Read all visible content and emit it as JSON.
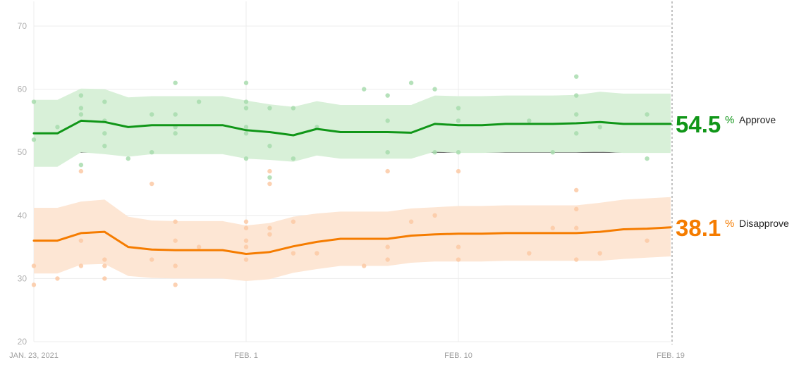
{
  "chart_data": {
    "type": "line",
    "ylim": [
      20,
      70
    ],
    "y_ticks": [
      20,
      30,
      40,
      50,
      60,
      70
    ],
    "x_tick_labels": [
      {
        "date": "2021-01-23",
        "label": "JAN. 23, 2021"
      },
      {
        "date": "2021-02-01",
        "label": "FEB. 1"
      },
      {
        "date": "2021-02-10",
        "label": "FEB. 10"
      },
      {
        "date": "2021-02-19",
        "label": "FEB. 19"
      }
    ],
    "x_range": [
      "2021-01-23",
      "2021-02-19"
    ],
    "reference_line": 50,
    "grid": true,
    "series": [
      {
        "name": "Approve",
        "color": "#109618",
        "band_color": "#d8f0d8",
        "dot_color": "#a8dcae",
        "final_value": "54.5",
        "line": [
          [
            "2021-01-23",
            53.0
          ],
          [
            "2021-01-24",
            53.0
          ],
          [
            "2021-01-25",
            55.0
          ],
          [
            "2021-01-26",
            54.8
          ],
          [
            "2021-01-27",
            54.0
          ],
          [
            "2021-01-28",
            54.3
          ],
          [
            "2021-01-29",
            54.3
          ],
          [
            "2021-01-30",
            54.3
          ],
          [
            "2021-01-31",
            54.3
          ],
          [
            "2021-02-01",
            53.5
          ],
          [
            "2021-02-02",
            53.2
          ],
          [
            "2021-02-03",
            52.7
          ],
          [
            "2021-02-04",
            53.7
          ],
          [
            "2021-02-05",
            53.2
          ],
          [
            "2021-02-06",
            53.2
          ],
          [
            "2021-02-07",
            53.2
          ],
          [
            "2021-02-08",
            53.1
          ],
          [
            "2021-02-09",
            54.5
          ],
          [
            "2021-02-10",
            54.3
          ],
          [
            "2021-02-11",
            54.3
          ],
          [
            "2021-02-12",
            54.5
          ],
          [
            "2021-02-13",
            54.5
          ],
          [
            "2021-02-14",
            54.5
          ],
          [
            "2021-02-15",
            54.6
          ],
          [
            "2021-02-16",
            54.8
          ],
          [
            "2021-02-17",
            54.5
          ],
          [
            "2021-02-18",
            54.5
          ],
          [
            "2021-02-19",
            54.5
          ]
        ],
        "band_upper": [
          58.3,
          58.3,
          60.1,
          60.0,
          58.7,
          58.9,
          58.9,
          58.9,
          58.9,
          58.2,
          57.6,
          57.2,
          58.1,
          57.5,
          57.5,
          57.5,
          57.5,
          59.0,
          58.9,
          58.9,
          59.0,
          59.0,
          59.0,
          59.1,
          59.6,
          59.3,
          59.3,
          59.3
        ],
        "band_lower": [
          47.7,
          47.7,
          50.0,
          49.7,
          49.3,
          49.7,
          49.7,
          49.7,
          49.7,
          49.0,
          48.8,
          48.5,
          49.5,
          49.0,
          49.0,
          49.0,
          49.0,
          50.1,
          49.9,
          49.9,
          50.0,
          50.0,
          50.0,
          50.0,
          50.1,
          49.9,
          49.9,
          49.9
        ],
        "polls": [
          [
            "2021-01-23",
            58
          ],
          [
            "2021-01-23",
            52
          ],
          [
            "2021-01-24",
            54
          ],
          [
            "2021-01-25",
            59
          ],
          [
            "2021-01-25",
            57
          ],
          [
            "2021-01-25",
            56
          ],
          [
            "2021-01-25",
            48
          ],
          [
            "2021-01-26",
            58
          ],
          [
            "2021-01-26",
            55
          ],
          [
            "2021-01-26",
            53
          ],
          [
            "2021-01-26",
            51
          ],
          [
            "2021-01-27",
            49
          ],
          [
            "2021-01-28",
            56
          ],
          [
            "2021-01-28",
            50
          ],
          [
            "2021-01-29",
            61
          ],
          [
            "2021-01-29",
            56
          ],
          [
            "2021-01-29",
            54
          ],
          [
            "2021-01-29",
            53
          ],
          [
            "2021-01-30",
            58
          ],
          [
            "2021-02-01",
            61
          ],
          [
            "2021-02-01",
            58
          ],
          [
            "2021-02-01",
            57
          ],
          [
            "2021-02-01",
            54
          ],
          [
            "2021-02-01",
            53
          ],
          [
            "2021-02-01",
            49
          ],
          [
            "2021-02-02",
            57
          ],
          [
            "2021-02-02",
            51
          ],
          [
            "2021-02-02",
            46
          ],
          [
            "2021-02-03",
            57
          ],
          [
            "2021-02-03",
            49
          ],
          [
            "2021-02-04",
            54
          ],
          [
            "2021-02-06",
            60
          ],
          [
            "2021-02-07",
            59
          ],
          [
            "2021-02-07",
            55
          ],
          [
            "2021-02-07",
            50
          ],
          [
            "2021-02-08",
            61
          ],
          [
            "2021-02-09",
            60
          ],
          [
            "2021-02-09",
            50
          ],
          [
            "2021-02-10",
            57
          ],
          [
            "2021-02-10",
            55
          ],
          [
            "2021-02-10",
            50
          ],
          [
            "2021-02-13",
            55
          ],
          [
            "2021-02-14",
            50
          ],
          [
            "2021-02-15",
            62
          ],
          [
            "2021-02-15",
            59
          ],
          [
            "2021-02-15",
            56
          ],
          [
            "2021-02-15",
            53
          ],
          [
            "2021-02-16",
            54
          ],
          [
            "2021-02-18",
            56
          ],
          [
            "2021-02-18",
            49
          ]
        ]
      },
      {
        "name": "Disapprove",
        "color": "#f57c00",
        "band_color": "#fde6d4",
        "dot_color": "#fcc9a5",
        "final_value": "38.1",
        "line": [
          [
            "2021-01-23",
            36.0
          ],
          [
            "2021-01-24",
            36.0
          ],
          [
            "2021-01-25",
            37.2
          ],
          [
            "2021-01-26",
            37.4
          ],
          [
            "2021-01-27",
            35.0
          ],
          [
            "2021-01-28",
            34.6
          ],
          [
            "2021-01-29",
            34.5
          ],
          [
            "2021-01-30",
            34.5
          ],
          [
            "2021-01-31",
            34.5
          ],
          [
            "2021-02-01",
            33.9
          ],
          [
            "2021-02-02",
            34.2
          ],
          [
            "2021-02-03",
            35.1
          ],
          [
            "2021-02-04",
            35.8
          ],
          [
            "2021-02-05",
            36.3
          ],
          [
            "2021-02-06",
            36.3
          ],
          [
            "2021-02-07",
            36.3
          ],
          [
            "2021-02-08",
            36.8
          ],
          [
            "2021-02-09",
            37.0
          ],
          [
            "2021-02-10",
            37.1
          ],
          [
            "2021-02-11",
            37.1
          ],
          [
            "2021-02-12",
            37.2
          ],
          [
            "2021-02-13",
            37.2
          ],
          [
            "2021-02-14",
            37.2
          ],
          [
            "2021-02-15",
            37.2
          ],
          [
            "2021-02-16",
            37.4
          ],
          [
            "2021-02-17",
            37.8
          ],
          [
            "2021-02-18",
            37.9
          ],
          [
            "2021-02-19",
            38.1
          ]
        ],
        "band_upper": [
          41.2,
          41.2,
          42.2,
          42.5,
          39.8,
          39.2,
          39.1,
          39.1,
          39.1,
          38.4,
          38.8,
          39.8,
          40.3,
          40.6,
          40.6,
          40.6,
          41.1,
          41.3,
          41.5,
          41.5,
          41.6,
          41.6,
          41.6,
          41.6,
          42.0,
          42.5,
          42.7,
          42.9
        ],
        "band_lower": [
          30.8,
          30.8,
          32.2,
          32.3,
          30.4,
          30.1,
          30.0,
          30.0,
          30.0,
          29.6,
          29.9,
          30.9,
          31.5,
          32.0,
          32.0,
          32.0,
          32.5,
          32.7,
          32.7,
          32.7,
          32.8,
          32.8,
          32.8,
          32.8,
          32.8,
          33.1,
          33.3,
          33.5
        ],
        "polls": [
          [
            "2021-01-23",
            32
          ],
          [
            "2021-01-23",
            29
          ],
          [
            "2021-01-24",
            30
          ],
          [
            "2021-01-25",
            47
          ],
          [
            "2021-01-25",
            36
          ],
          [
            "2021-01-25",
            32
          ],
          [
            "2021-01-26",
            33
          ],
          [
            "2021-01-26",
            32
          ],
          [
            "2021-01-26",
            30
          ],
          [
            "2021-01-28",
            45
          ],
          [
            "2021-01-28",
            33
          ],
          [
            "2021-01-29",
            39
          ],
          [
            "2021-01-29",
            36
          ],
          [
            "2021-01-29",
            32
          ],
          [
            "2021-01-29",
            29
          ],
          [
            "2021-01-30",
            35
          ],
          [
            "2021-02-01",
            39
          ],
          [
            "2021-02-01",
            38
          ],
          [
            "2021-02-01",
            36
          ],
          [
            "2021-02-01",
            35
          ],
          [
            "2021-02-01",
            33
          ],
          [
            "2021-02-02",
            47
          ],
          [
            "2021-02-02",
            45
          ],
          [
            "2021-02-02",
            38
          ],
          [
            "2021-02-02",
            37
          ],
          [
            "2021-02-03",
            39
          ],
          [
            "2021-02-03",
            34
          ],
          [
            "2021-02-04",
            34
          ],
          [
            "2021-02-06",
            32
          ],
          [
            "2021-02-07",
            47
          ],
          [
            "2021-02-07",
            35
          ],
          [
            "2021-02-07",
            33
          ],
          [
            "2021-02-08",
            39
          ],
          [
            "2021-02-09",
            40
          ],
          [
            "2021-02-10",
            47
          ],
          [
            "2021-02-10",
            35
          ],
          [
            "2021-02-10",
            33
          ],
          [
            "2021-02-13",
            34
          ],
          [
            "2021-02-14",
            38
          ],
          [
            "2021-02-15",
            44
          ],
          [
            "2021-02-15",
            41
          ],
          [
            "2021-02-15",
            38
          ],
          [
            "2021-02-15",
            33
          ],
          [
            "2021-02-16",
            34
          ],
          [
            "2021-02-18",
            36
          ]
        ]
      }
    ]
  }
}
